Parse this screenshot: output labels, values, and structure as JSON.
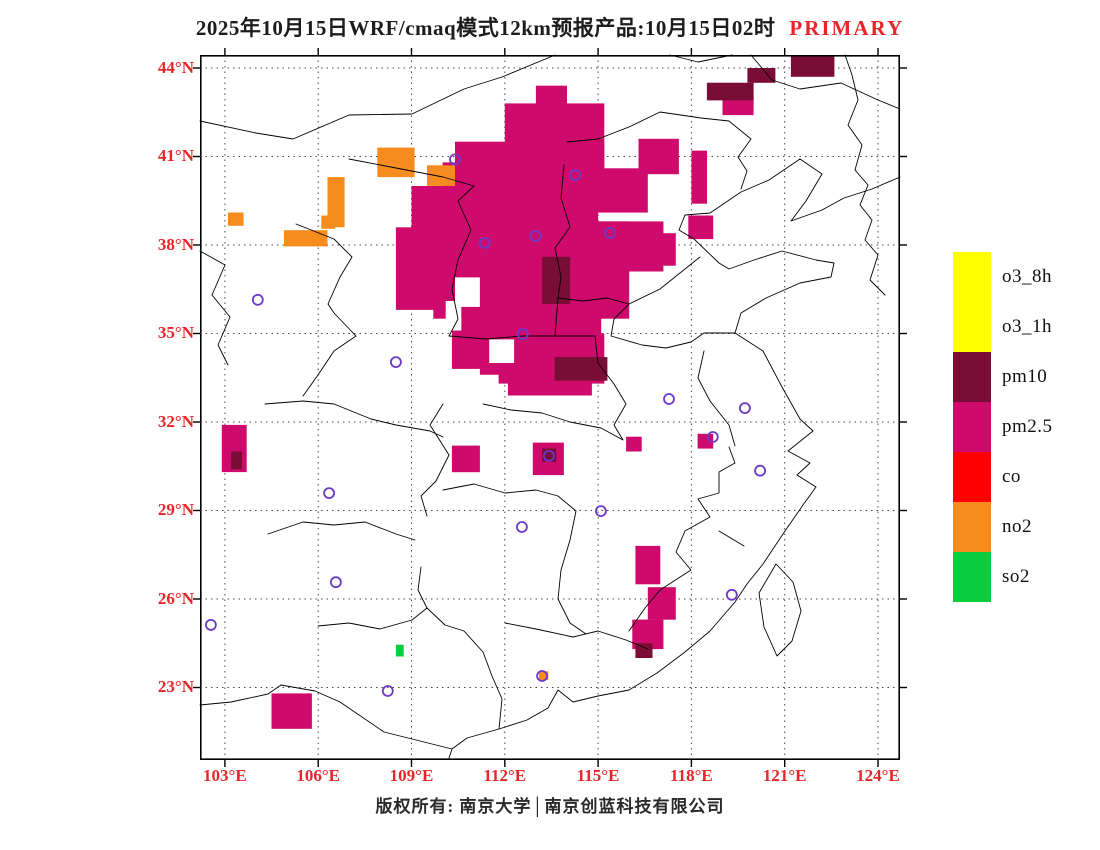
{
  "title": {
    "main": "2025年10月15日WRF/cmaq模式12km预报产品:10月15日02时",
    "highlight": "PRIMARY"
  },
  "axes": {
    "lat_ticks": [
      "44°N",
      "41°N",
      "38°N",
      "35°N",
      "32°N",
      "29°N",
      "26°N",
      "23°N"
    ],
    "lat_values": [
      44,
      41,
      38,
      35,
      32,
      29,
      26,
      23
    ],
    "lon_ticks": [
      "103°E",
      "106°E",
      "109°E",
      "112°E",
      "115°E",
      "118°E",
      "121°E",
      "124°E"
    ],
    "lon_values": [
      103,
      106,
      109,
      112,
      115,
      118,
      121,
      124
    ]
  },
  "legend": {
    "entries": [
      {
        "label": "o3_8h",
        "color": "#FFFF00"
      },
      {
        "label": "o3_1h",
        "color": "#FFFF00"
      },
      {
        "label": "pm10",
        "color": "#7A0D35"
      },
      {
        "label": "pm2.5",
        "color": "#CE0A6C"
      },
      {
        "label": "co",
        "color": "#FE0000"
      },
      {
        "label": "no2",
        "color": "#F78C1E"
      },
      {
        "label": "so2",
        "color": "#0ACC3C"
      }
    ]
  },
  "footer": {
    "copyright": "版权所有: 南京大学│南京创蓝科技有限公司"
  },
  "colors": {
    "axis_label": "#E8262A",
    "title_highlight": "#E8262A",
    "marker": "#6A3AC8",
    "grid": "#4A4A4A"
  },
  "chart_data": {
    "type": "map",
    "extent": {
      "lon_min": 102.2,
      "lon_max": 124.7,
      "lat_min": 20.56,
      "lat_max": 44.44
    },
    "cell_colors": {
      "pm2.5": "#CE0A6C",
      "pm10": "#7A0D35",
      "no2": "#F78C1E",
      "so2": "#0ACC3C"
    },
    "cells": {
      "pm2.5": [
        [
          112.0,
          42.8,
          3.2,
          2.6
        ],
        [
          113.0,
          43.4,
          1.0,
          0.8
        ],
        [
          110.4,
          41.5,
          2.2,
          1.6
        ],
        [
          113.6,
          41.4,
          1.6,
          1.6
        ],
        [
          116.3,
          41.6,
          1.3,
          1.2
        ],
        [
          109.0,
          40.0,
          4.2,
          2.2
        ],
        [
          110.0,
          40.8,
          5.0,
          2.2
        ],
        [
          114.5,
          40.6,
          2.1,
          1.5
        ],
        [
          114.9,
          40.3,
          1.2,
          1.0
        ],
        [
          108.5,
          38.6,
          2.4,
          2.8
        ],
        [
          110.8,
          38.8,
          5.2,
          3.3
        ],
        [
          114.9,
          38.8,
          2.2,
          1.7
        ],
        [
          116.1,
          38.4,
          1.4,
          1.1
        ],
        [
          117.9,
          39.0,
          0.8,
          0.8
        ],
        [
          118.0,
          41.2,
          0.5,
          1.8
        ],
        [
          119.0,
          43.1,
          1.0,
          0.7
        ],
        [
          109.7,
          37.3,
          1.4,
          1.8
        ],
        [
          110.3,
          36.2,
          4.8,
          2.4
        ],
        [
          111.2,
          35.0,
          4.0,
          1.7
        ],
        [
          112.1,
          34.2,
          2.7,
          1.3
        ],
        [
          102.9,
          31.9,
          0.8,
          1.6
        ],
        [
          110.3,
          31.2,
          0.9,
          0.9
        ],
        [
          112.9,
          31.3,
          1.0,
          1.1
        ],
        [
          115.9,
          31.5,
          0.5,
          0.5
        ],
        [
          118.2,
          31.6,
          0.5,
          0.5
        ],
        [
          116.2,
          27.8,
          0.8,
          1.3
        ],
        [
          116.6,
          26.4,
          0.9,
          1.1
        ],
        [
          116.1,
          25.3,
          1.0,
          1.0
        ],
        [
          104.5,
          22.8,
          1.3,
          1.2
        ]
      ],
      "pm10": [
        [
          113.2,
          37.6,
          0.9,
          1.6
        ],
        [
          113.6,
          34.2,
          1.7,
          0.8
        ],
        [
          121.2,
          44.4,
          1.4,
          0.7
        ],
        [
          118.5,
          43.5,
          1.5,
          0.6
        ],
        [
          119.8,
          44.0,
          0.9,
          0.5
        ],
        [
          113.2,
          31.1,
          0.45,
          0.45
        ],
        [
          116.2,
          24.5,
          0.55,
          0.5
        ],
        [
          103.2,
          31.0,
          0.35,
          0.6
        ]
      ],
      "no2": [
        [
          107.9,
          41.3,
          1.2,
          1.0
        ],
        [
          106.3,
          40.3,
          0.55,
          1.7
        ],
        [
          109.5,
          40.7,
          0.9,
          0.7
        ],
        [
          104.9,
          38.5,
          1.4,
          0.55
        ],
        [
          103.1,
          39.1,
          0.5,
          0.45
        ],
        [
          106.1,
          39.0,
          0.45,
          0.45
        ],
        [
          113.1,
          23.55,
          0.3,
          0.3
        ]
      ],
      "so2": [
        [
          108.5,
          24.45,
          0.25,
          0.4
        ]
      ]
    },
    "holes": [
      [
        110.4,
        36.9,
        0.8,
        1.0
      ],
      [
        111.5,
        34.8,
        0.8,
        0.8
      ],
      [
        110.1,
        36.1,
        0.5,
        1.0
      ],
      [
        110.9,
        33.6,
        0.9,
        0.9
      ]
    ],
    "city_markers": [
      [
        110.4,
        40.9
      ],
      [
        114.26,
        40.37
      ],
      [
        112.99,
        38.3
      ],
      [
        111.36,
        38.07
      ],
      [
        115.38,
        38.41
      ],
      [
        104.06,
        36.14
      ],
      [
        112.58,
        34.98
      ],
      [
        108.5,
        34.03
      ],
      [
        117.28,
        32.78
      ],
      [
        119.72,
        32.47
      ],
      [
        118.69,
        31.49
      ],
      [
        113.42,
        30.85
      ],
      [
        106.35,
        29.59
      ],
      [
        115.09,
        28.98
      ],
      [
        112.55,
        28.44
      ],
      [
        120.21,
        30.35
      ],
      [
        119.3,
        26.14
      ],
      [
        106.57,
        26.57
      ],
      [
        102.55,
        25.12
      ],
      [
        113.2,
        23.39
      ],
      [
        108.24,
        22.88
      ]
    ]
  }
}
